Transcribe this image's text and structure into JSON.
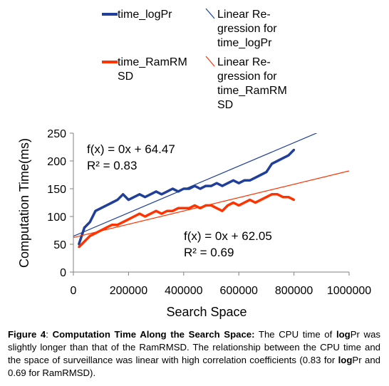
{
  "chart_data": {
    "type": "line",
    "xlabel": "Search Space",
    "ylabel": "Computation Time(ms)",
    "xlim": [
      0,
      1000000
    ],
    "ylim": [
      0,
      250
    ],
    "x_ticks": [
      "0",
      "200000",
      "400000",
      "600000",
      "800000",
      "1000000"
    ],
    "y_ticks": [
      "0",
      "50",
      "100",
      "150",
      "200",
      "250"
    ],
    "grid": false,
    "legend_position": "top-center",
    "series": [
      {
        "name": "time_logPr",
        "color": "#1f3f99",
        "x": [
          20000,
          40000,
          60000,
          80000,
          100000,
          120000,
          140000,
          160000,
          180000,
          200000,
          220000,
          240000,
          260000,
          280000,
          300000,
          320000,
          340000,
          360000,
          380000,
          400000,
          420000,
          440000,
          460000,
          480000,
          500000,
          520000,
          540000,
          560000,
          580000,
          600000,
          620000,
          640000,
          660000,
          680000,
          700000,
          720000,
          740000,
          760000,
          780000,
          800000
        ],
        "y": [
          50,
          80,
          90,
          110,
          115,
          120,
          125,
          130,
          140,
          130,
          135,
          140,
          135,
          140,
          145,
          140,
          145,
          150,
          145,
          150,
          150,
          155,
          150,
          155,
          155,
          160,
          155,
          160,
          165,
          160,
          165,
          165,
          170,
          175,
          180,
          195,
          200,
          205,
          210,
          220
        ]
      },
      {
        "name": "time_RamRMSD",
        "color": "#ff3300",
        "x": [
          20000,
          40000,
          60000,
          80000,
          100000,
          120000,
          140000,
          160000,
          180000,
          200000,
          220000,
          240000,
          260000,
          280000,
          300000,
          320000,
          340000,
          360000,
          380000,
          400000,
          420000,
          440000,
          460000,
          480000,
          500000,
          520000,
          540000,
          560000,
          580000,
          600000,
          620000,
          640000,
          660000,
          680000,
          700000,
          720000,
          740000,
          760000,
          780000,
          800000
        ],
        "y": [
          45,
          55,
          65,
          70,
          75,
          80,
          85,
          85,
          90,
          95,
          100,
          105,
          100,
          105,
          110,
          105,
          110,
          110,
          115,
          115,
          115,
          120,
          115,
          120,
          120,
          115,
          110,
          120,
          125,
          120,
          125,
          130,
          125,
          130,
          135,
          140,
          140,
          135,
          135,
          130
        ]
      },
      {
        "name": "Linear Regression for time_logPr",
        "color": "#1f3f99",
        "x": [
          0,
          1000000
        ],
        "y": [
          64.47,
          275
        ]
      },
      {
        "name": "Linear Regression for time_RamRMSD",
        "color": "#ff3300",
        "x": [
          0,
          1000000
        ],
        "y": [
          62.05,
          182
        ]
      }
    ],
    "legend": [
      {
        "label": "time_logPr",
        "color": "#1f3f99",
        "kind": "data"
      },
      {
        "label": "Linear Re-\ngression for\ntime_logPr",
        "color": "#1f3f99",
        "kind": "trend"
      },
      {
        "label": "time_RamRM\nSD",
        "color": "#ff3300",
        "kind": "data"
      },
      {
        "label": "Linear Re-\ngression for\ntime_RamRM\nSD",
        "color": "#ff3300",
        "kind": "trend"
      }
    ],
    "annotations": [
      {
        "text": "f(x) = 0x + 64.47",
        "series": "time_logPr"
      },
      {
        "text": "R² = 0.83",
        "series": "time_logPr"
      },
      {
        "text": "f(x) = 0x + 62.05",
        "series": "time_RamRMSD"
      },
      {
        "text": "R² = 0.69",
        "series": "time_RamRMSD"
      }
    ]
  },
  "caption": {
    "figure_label": "Figure 4",
    "title": "Computation Time Along the Search Space:",
    "part1": " The CPU time of ",
    "bold1": "log",
    "part2": "Pr was slightly longer than that of the RamRMSD. The relationship between the CPU time and the space of surveillance was linear with high correlation coefficients (0.83 for ",
    "bold2": "log",
    "part3": "Pr and 0.69 for RamRMSD)."
  }
}
